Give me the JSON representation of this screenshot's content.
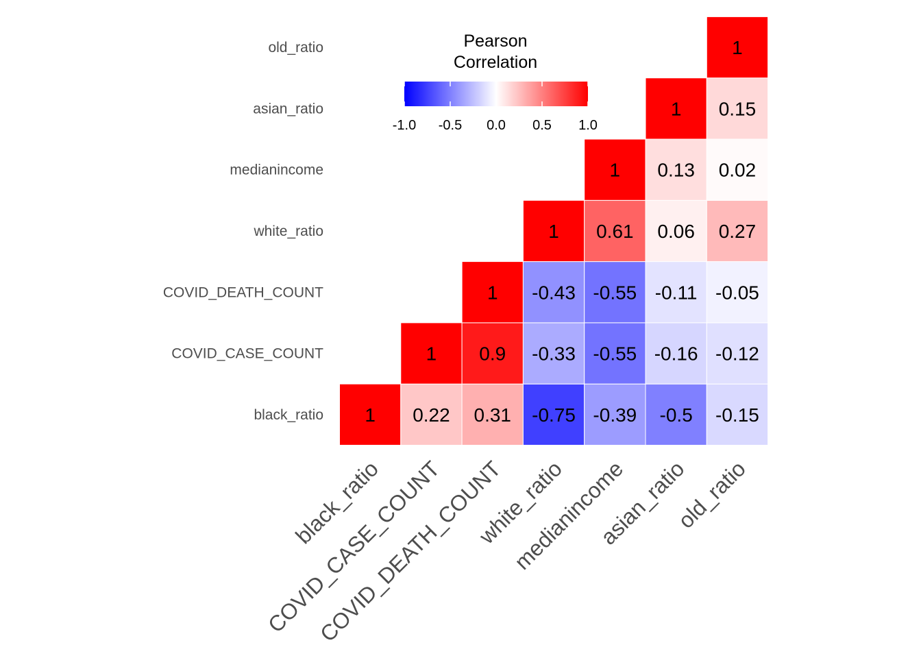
{
  "chart_data": {
    "type": "heatmap",
    "legend": {
      "title_lines": [
        "Pearson",
        "Correlation"
      ],
      "ticks": [
        -1.0,
        -0.5,
        0.0,
        0.5,
        1.0
      ],
      "tick_labels": [
        "-1.0",
        "-0.5",
        "0.0",
        "0.5",
        "1.0"
      ],
      "placement": "top-center",
      "low_color": "#0000FF",
      "mid_color": "#FFFFFF",
      "high_color": "#FF0000"
    },
    "x_categories": [
      "black_ratio",
      "COVID_CASE_COUNT",
      "COVID_DEATH_COUNT",
      "white_ratio",
      "medianincome",
      "asian_ratio",
      "old_ratio"
    ],
    "y_categories": [
      "black_ratio",
      "COVID_CASE_COUNT",
      "COVID_DEATH_COUNT",
      "white_ratio",
      "medianincome",
      "asian_ratio",
      "old_ratio"
    ],
    "cells": [
      {
        "x": "black_ratio",
        "y": "black_ratio",
        "value": 1,
        "label": "1"
      },
      {
        "x": "COVID_CASE_COUNT",
        "y": "black_ratio",
        "value": 0.22,
        "label": "0.22"
      },
      {
        "x": "COVID_DEATH_COUNT",
        "y": "black_ratio",
        "value": 0.31,
        "label": "0.31"
      },
      {
        "x": "white_ratio",
        "y": "black_ratio",
        "value": -0.75,
        "label": "-0.75"
      },
      {
        "x": "medianincome",
        "y": "black_ratio",
        "value": -0.39,
        "label": "-0.39"
      },
      {
        "x": "asian_ratio",
        "y": "black_ratio",
        "value": -0.5,
        "label": "-0.5"
      },
      {
        "x": "old_ratio",
        "y": "black_ratio",
        "value": -0.15,
        "label": "-0.15"
      },
      {
        "x": "COVID_CASE_COUNT",
        "y": "COVID_CASE_COUNT",
        "value": 1,
        "label": "1"
      },
      {
        "x": "COVID_DEATH_COUNT",
        "y": "COVID_CASE_COUNT",
        "value": 0.9,
        "label": "0.9"
      },
      {
        "x": "white_ratio",
        "y": "COVID_CASE_COUNT",
        "value": -0.33,
        "label": "-0.33"
      },
      {
        "x": "medianincome",
        "y": "COVID_CASE_COUNT",
        "value": -0.55,
        "label": "-0.55"
      },
      {
        "x": "asian_ratio",
        "y": "COVID_CASE_COUNT",
        "value": -0.16,
        "label": "-0.16"
      },
      {
        "x": "old_ratio",
        "y": "COVID_CASE_COUNT",
        "value": -0.12,
        "label": "-0.12"
      },
      {
        "x": "COVID_DEATH_COUNT",
        "y": "COVID_DEATH_COUNT",
        "value": 1,
        "label": "1"
      },
      {
        "x": "white_ratio",
        "y": "COVID_DEATH_COUNT",
        "value": -0.43,
        "label": "-0.43"
      },
      {
        "x": "medianincome",
        "y": "COVID_DEATH_COUNT",
        "value": -0.55,
        "label": "-0.55"
      },
      {
        "x": "asian_ratio",
        "y": "COVID_DEATH_COUNT",
        "value": -0.11,
        "label": "-0.11"
      },
      {
        "x": "old_ratio",
        "y": "COVID_DEATH_COUNT",
        "value": -0.05,
        "label": "-0.05"
      },
      {
        "x": "white_ratio",
        "y": "white_ratio",
        "value": 1,
        "label": "1"
      },
      {
        "x": "medianincome",
        "y": "white_ratio",
        "value": 0.61,
        "label": "0.61"
      },
      {
        "x": "asian_ratio",
        "y": "white_ratio",
        "value": 0.06,
        "label": "0.06"
      },
      {
        "x": "old_ratio",
        "y": "white_ratio",
        "value": 0.27,
        "label": "0.27"
      },
      {
        "x": "medianincome",
        "y": "medianincome",
        "value": 1,
        "label": "1"
      },
      {
        "x": "asian_ratio",
        "y": "medianincome",
        "value": 0.13,
        "label": "0.13"
      },
      {
        "x": "old_ratio",
        "y": "medianincome",
        "value": 0.02,
        "label": "0.02"
      },
      {
        "x": "asian_ratio",
        "y": "asian_ratio",
        "value": 1,
        "label": "1"
      },
      {
        "x": "old_ratio",
        "y": "asian_ratio",
        "value": 0.15,
        "label": "0.15"
      },
      {
        "x": "old_ratio",
        "y": "old_ratio",
        "value": 1,
        "label": "1"
      }
    ]
  }
}
